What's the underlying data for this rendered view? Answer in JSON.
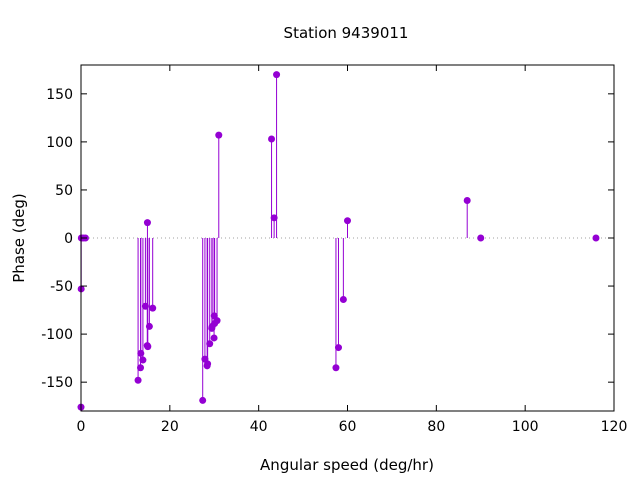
{
  "chart_data": {
    "type": "scatter",
    "style": "impulses-with-points",
    "title": "Station 9439011",
    "xlabel": "Angular speed (deg/hr)",
    "ylabel": "Phase (deg)",
    "xlim": [
      0,
      120
    ],
    "ylim": [
      -180,
      180
    ],
    "xticks": [
      0,
      20,
      40,
      60,
      80,
      100,
      120
    ],
    "yticks": [
      -150,
      -100,
      -50,
      0,
      50,
      100,
      150
    ],
    "grid": false,
    "zero_line": true,
    "color": "#9400d3",
    "points": [
      {
        "x": 0.0,
        "y": -176
      },
      {
        "x": 0.04,
        "y": -53
      },
      {
        "x": 0.08,
        "y": 0
      },
      {
        "x": 0.5,
        "y": 0
      },
      {
        "x": 1.0,
        "y": 0
      },
      {
        "x": 12.85,
        "y": -148
      },
      {
        "x": 13.4,
        "y": -135
      },
      {
        "x": 13.47,
        "y": -120
      },
      {
        "x": 13.94,
        "y": -127
      },
      {
        "x": 14.5,
        "y": -71
      },
      {
        "x": 14.92,
        "y": -112
      },
      {
        "x": 14.96,
        "y": 16
      },
      {
        "x": 15.04,
        "y": -113
      },
      {
        "x": 15.4,
        "y": -92
      },
      {
        "x": 16.14,
        "y": -73
      },
      {
        "x": 27.4,
        "y": -169
      },
      {
        "x": 27.9,
        "y": -126
      },
      {
        "x": 28.4,
        "y": -133
      },
      {
        "x": 28.51,
        "y": -131
      },
      {
        "x": 28.98,
        "y": -110
      },
      {
        "x": 29.46,
        "y": -94
      },
      {
        "x": 29.53,
        "y": -92
      },
      {
        "x": 29.96,
        "y": -104
      },
      {
        "x": 30.0,
        "y": -81
      },
      {
        "x": 30.08,
        "y": -89
      },
      {
        "x": 30.63,
        "y": -86
      },
      {
        "x": 31.02,
        "y": 107
      },
      {
        "x": 42.9,
        "y": 103
      },
      {
        "x": 43.48,
        "y": 21
      },
      {
        "x": 44.03,
        "y": 170
      },
      {
        "x": 57.4,
        "y": -135
      },
      {
        "x": 57.97,
        "y": -114
      },
      {
        "x": 59.07,
        "y": -64
      },
      {
        "x": 60.0,
        "y": 18
      },
      {
        "x": 86.95,
        "y": 39
      },
      {
        "x": 90.0,
        "y": 0
      },
      {
        "x": 115.94,
        "y": 0
      }
    ]
  }
}
